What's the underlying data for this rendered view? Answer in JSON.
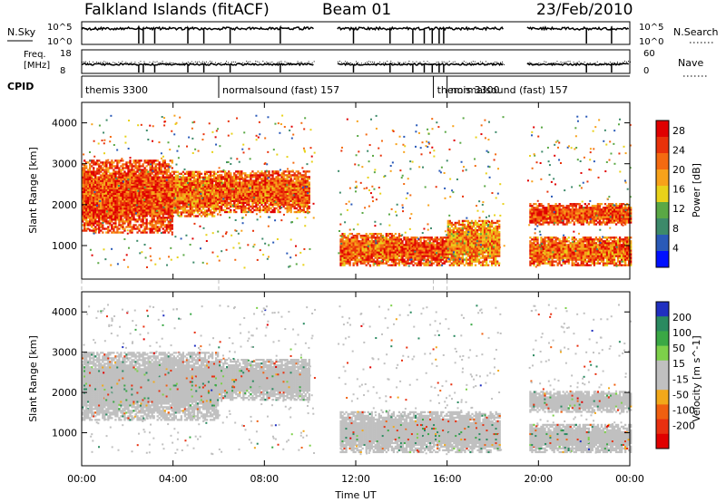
{
  "header": {
    "station": "Falkland Islands (fitACF)",
    "beam": "Beam 01",
    "date": "23/Feb/2010"
  },
  "panels": {
    "nsky_label": "N.Sky",
    "nsearch_label": "N.Search",
    "nsky_ticks": [
      "10^5",
      "10^0"
    ],
    "nsearch_ticks": [
      "10^5",
      "10^0"
    ],
    "freq_label": [
      "Freq.",
      "[MHz]"
    ],
    "freq_ticks": [
      "18",
      "8"
    ],
    "nave_label": "Nave",
    "nave_ticks": [
      "60",
      "0"
    ],
    "cpid_label": "CPID",
    "cpid_segments": [
      {
        "label": "themis 3300",
        "start_hour": 0.0
      },
      {
        "label": "normalsound (fast) 157",
        "start_hour": 6.0
      },
      {
        "label": "themis 3300",
        "start_hour": 15.4
      },
      {
        "label": "normalsound (fast) 157",
        "start_hour": 16.0
      }
    ]
  },
  "colors": {
    "power_scale": [
      "#0010ff",
      "#2a5ab8",
      "#3d8a6a",
      "#5aa845",
      "#e8d21a",
      "#f7a21a",
      "#f46a10",
      "#e8320a",
      "#e00000"
    ],
    "velocity_scale": [
      "#2030c0",
      "#2a8a60",
      "#3aa845",
      "#7dd04a",
      "#c0c0c0",
      "#c0c0c0",
      "#f2a81a",
      "#f06010",
      "#e83010",
      "#e00000"
    ]
  },
  "chart_data": [
    {
      "type": "heatmap",
      "title": "",
      "xlabel": "Time UT",
      "ylabel": "Slant Range [km]",
      "xlim": [
        0,
        24
      ],
      "ylim": [
        180,
        4500
      ],
      "x_ticks": [
        "00:00",
        "04:00",
        "08:00",
        "12:00",
        "16:00",
        "20:00",
        "00:00"
      ],
      "x_tick_hours": [
        0,
        4,
        8,
        12,
        16,
        20,
        24
      ],
      "y_ticks": [
        1000,
        2000,
        3000,
        4000
      ],
      "colorbar": {
        "label": "Power [dB]",
        "ticks": [
          4,
          8,
          12,
          16,
          20,
          24,
          28
        ],
        "range": [
          0,
          30
        ]
      },
      "data_gaps_hours": [
        [
          10.2,
          11.2
        ],
        [
          18.5,
          19.5
        ]
      ],
      "echo_bands": [
        {
          "t0": 0.0,
          "t1": 4.0,
          "r0": 1300,
          "r1": 3100,
          "power": 24
        },
        {
          "t0": 4.0,
          "t1": 6.0,
          "r0": 1700,
          "r1": 2800,
          "power": 22
        },
        {
          "t0": 6.0,
          "t1": 10.0,
          "r0": 1800,
          "r1": 2800,
          "power": 23
        },
        {
          "t0": 11.3,
          "t1": 14.0,
          "r0": 500,
          "r1": 1300,
          "power": 22
        },
        {
          "t0": 14.0,
          "t1": 16.0,
          "r0": 500,
          "r1": 1200,
          "power": 24
        },
        {
          "t0": 16.0,
          "t1": 18.3,
          "r0": 500,
          "r1": 1600,
          "power": 20
        },
        {
          "t0": 19.6,
          "t1": 24.0,
          "r0": 1500,
          "r1": 2000,
          "power": 24
        },
        {
          "t0": 19.6,
          "t1": 24.0,
          "r0": 500,
          "r1": 1200,
          "power": 22
        }
      ]
    },
    {
      "type": "heatmap",
      "title": "",
      "xlabel": "Time UT",
      "ylabel": "Slant Range [km]",
      "xlim": [
        0,
        24
      ],
      "ylim": [
        180,
        4500
      ],
      "x_ticks": [
        "00:00",
        "04:00",
        "08:00",
        "12:00",
        "16:00",
        "20:00",
        "00:00"
      ],
      "x_tick_hours": [
        0,
        4,
        8,
        12,
        16,
        20,
        24
      ],
      "y_ticks": [
        1000,
        2000,
        3000,
        4000
      ],
      "colorbar": {
        "label": "Velocity [m s^-1]",
        "ticks": [
          200,
          100,
          50,
          15,
          -15,
          -50,
          -100,
          -200
        ],
        "range": [
          -250,
          250
        ]
      },
      "data_gaps_hours": [
        [
          10.2,
          11.2
        ],
        [
          18.5,
          19.5
        ]
      ],
      "echo_bands": [
        {
          "t0": 0.0,
          "t1": 6.0,
          "r0": 1300,
          "r1": 3000,
          "velocity": 0
        },
        {
          "t0": 6.0,
          "t1": 10.0,
          "r0": 1800,
          "r1": 2800,
          "velocity": 0
        },
        {
          "t0": 11.3,
          "t1": 18.3,
          "r0": 500,
          "r1": 1500,
          "velocity": 0
        },
        {
          "t0": 19.6,
          "t1": 24.0,
          "r0": 1500,
          "r1": 2000,
          "velocity": 0
        },
        {
          "t0": 19.6,
          "t1": 24.0,
          "r0": 500,
          "r1": 1200,
          "velocity": 0
        }
      ]
    }
  ]
}
